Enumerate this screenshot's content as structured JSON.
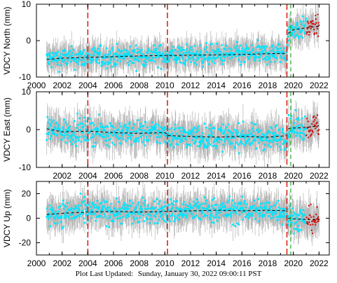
{
  "footer": {
    "label": "Plot Last Updated:",
    "value": "Sunday, January 30, 2022 09:00:11 PST"
  },
  "colors": {
    "error_bars": "#b4b4b4",
    "points": "#00e5ff",
    "recent_points": "#d01010",
    "trend": "#000000",
    "event_red": "#e02020",
    "event_green": "#20b020"
  },
  "chart_data": [
    {
      "type": "scatter",
      "ylabel": "VDCY North (mm)",
      "xlim": [
        2000,
        2022.8
      ],
      "ylim": [
        -10,
        10
      ],
      "x_ticks": [
        2000,
        2002,
        2004,
        2006,
        2008,
        2010,
        2012,
        2014,
        2016,
        2018,
        2020,
        2022
      ],
      "x_tick_labels": [
        "2000",
        "2002",
        "2004",
        "2006",
        "2008",
        "2010",
        "2012",
        "2014",
        "2016",
        "2018",
        "2020",
        "2022"
      ],
      "y_ticks": [
        -10,
        0,
        10
      ],
      "y_tick_labels": [
        "-10",
        "0",
        "10"
      ],
      "event_lines_red": [
        2004.0,
        2010.2,
        2019.5
      ],
      "event_lines_green": [
        2019.8
      ],
      "trend": {
        "x": [
          2000.8,
          2002,
          2004,
          2006,
          2008,
          2010,
          2012,
          2014,
          2016,
          2018,
          2019.5,
          2019.6,
          2020,
          2021,
          2022
        ],
        "y": [
          -5.2,
          -4.8,
          -4.6,
          -4.4,
          -4.2,
          -4.1,
          -4.0,
          -3.9,
          -3.8,
          -3.6,
          -3.5,
          2.0,
          3.0,
          3.5,
          4.0
        ]
      },
      "scatter_spread": 1.4,
      "error_spread": 3.5,
      "data_start": 2000.8,
      "data_end": 2022.0,
      "recent_start": 2021.0
    },
    {
      "type": "scatter",
      "ylabel": "VDCY East (mm)",
      "xlim": [
        2000,
        2022.8
      ],
      "ylim": [
        -10,
        10
      ],
      "x_ticks": [
        2000,
        2002,
        2004,
        2006,
        2008,
        2010,
        2012,
        2014,
        2016,
        2018,
        2020,
        2022
      ],
      "x_tick_labels": [
        "",
        "2002",
        "2004",
        "2006",
        "2008",
        "2010",
        "2012",
        "2014",
        "2016",
        "2018",
        "2020",
        "2022"
      ],
      "y_ticks": [
        -10,
        0,
        10
      ],
      "y_tick_labels": [
        "-10",
        "0",
        "10"
      ],
      "event_lines_red": [
        2004.0,
        2010.2,
        2019.5
      ],
      "event_lines_green": [
        2019.8
      ],
      "trend": {
        "x": [
          2000.8,
          2002,
          2004,
          2006,
          2008,
          2010,
          2010.3,
          2012,
          2014,
          2016,
          2018,
          2019.5,
          2019.6,
          2020,
          2021,
          2022
        ],
        "y": [
          0.2,
          -0.6,
          -0.4,
          -0.8,
          -1.0,
          -0.8,
          -1.6,
          -1.8,
          -2.0,
          -1.8,
          -2.0,
          -1.6,
          0.2,
          0.4,
          0.6,
          1.0
        ]
      },
      "scatter_spread": 1.6,
      "error_spread": 4.0,
      "data_start": 2000.8,
      "data_end": 2022.0,
      "recent_start": 2021.0
    },
    {
      "type": "scatter",
      "ylabel": "VDCY Up (mm)",
      "xlim": [
        2000,
        2022.8
      ],
      "ylim": [
        -30,
        30
      ],
      "x_ticks": [
        2000,
        2002,
        2004,
        2006,
        2008,
        2010,
        2012,
        2014,
        2016,
        2018,
        2020,
        2022
      ],
      "x_tick_labels": [
        "2000",
        "2002",
        "2004",
        "2006",
        "2008",
        "2010",
        "2012",
        "2014",
        "2016",
        "2018",
        "2020",
        "2022"
      ],
      "y_ticks": [
        -20,
        0,
        20
      ],
      "y_tick_labels": [
        "-20",
        "0",
        "20"
      ],
      "event_lines_red": [
        2004.0,
        2010.2,
        2019.5
      ],
      "event_lines_green": [
        2019.8
      ],
      "trend": {
        "x": [
          2000.8,
          2002,
          2004,
          2006,
          2008,
          2010,
          2012,
          2014,
          2016,
          2018,
          2019.5,
          2019.6,
          2020,
          2021,
          2022
        ],
        "y": [
          3.0,
          4.0,
          5.0,
          5.5,
          5.0,
          5.5,
          6.0,
          6.5,
          6.0,
          6.5,
          6.0,
          0.0,
          -0.5,
          -1.0,
          -1.0
        ]
      },
      "scatter_spread": 5.0,
      "error_spread": 12.0,
      "data_start": 2000.8,
      "data_end": 2022.0,
      "recent_start": 2021.0
    }
  ]
}
